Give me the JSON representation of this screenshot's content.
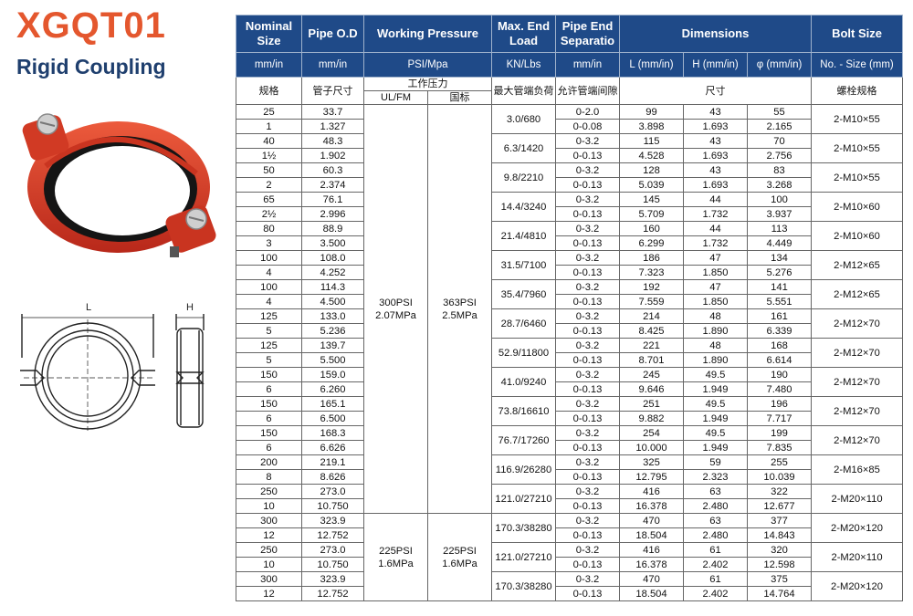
{
  "header": {
    "title": "XGQT01",
    "subtitle": "Rigid Coupling"
  },
  "colors": {
    "title": "#e4572e",
    "subtitle": "#1f3f6e",
    "table_header_bg": "#1f4a88",
    "coupling_red": "#d93a22"
  },
  "table": {
    "headers": {
      "nominal": "Nominal Size",
      "pipe_od": "Pipe O.D",
      "working_pressure": "Working Pressure",
      "max_end_load": "Max. End Load",
      "pipe_end_separation": "Pipe End Separatio",
      "dimensions": "Dimensions",
      "bolt_size": "Bolt Size"
    },
    "units": {
      "nominal": "mm/in",
      "pipe_od": "mm/in",
      "pressure": "PSI/Mpa",
      "end_load": "KN/Lbs",
      "separation": "mm/in",
      "L": "L (mm/in)",
      "H": "H (mm/in)",
      "phi": "φ (mm/in)",
      "bolt": "No. - Size (mm)"
    },
    "cn": {
      "nominal": "规格",
      "pipe_od": "管子尺寸",
      "pressure": "工作压力",
      "ulfm": "UL/FM",
      "gb": "国标",
      "end_load": "最大管端负荷",
      "separation": "允许管端间隙",
      "dimensions": "尺寸",
      "bolt": "螺栓规格"
    },
    "pressure_groups": [
      {
        "ul": "300PSI\n2.07MPa",
        "ul_psi": "300PSI",
        "ul_mpa": "2.07MPa",
        "gb_psi": "363PSI",
        "gb_mpa": "2.5MPa"
      },
      {
        "ul_psi": "225PSI",
        "ul_mpa": "1.6MPa",
        "gb_psi": "225PSI",
        "gb_mpa": "1.6MPa"
      }
    ],
    "rows": [
      {
        "nom_mm": "25",
        "nom_in": "1",
        "od_mm": "33.7",
        "od_in": "1.327",
        "load": "3.0/680",
        "sep_mm": "0-2.0",
        "sep_in": "0-0.08",
        "L_mm": "99",
        "L_in": "3.898",
        "H_mm": "43",
        "H_in": "1.693",
        "phi_mm": "55",
        "phi_in": "2.165",
        "bolt": "2-M10×55"
      },
      {
        "nom_mm": "40",
        "nom_in": "1½",
        "od_mm": "48.3",
        "od_in": "1.902",
        "load": "6.3/1420",
        "sep_mm": "0-3.2",
        "sep_in": "0-0.13",
        "L_mm": "115",
        "L_in": "4.528",
        "H_mm": "43",
        "H_in": "1.693",
        "phi_mm": "70",
        "phi_in": "2.756",
        "bolt": "2-M10×55"
      },
      {
        "nom_mm": "50",
        "nom_in": "2",
        "od_mm": "60.3",
        "od_in": "2.374",
        "load": "9.8/2210",
        "sep_mm": "0-3.2",
        "sep_in": "0-0.13",
        "L_mm": "128",
        "L_in": "5.039",
        "H_mm": "43",
        "H_in": "1.693",
        "phi_mm": "83",
        "phi_in": "3.268",
        "bolt": "2-M10×55"
      },
      {
        "nom_mm": "65",
        "nom_in": "2½",
        "od_mm": "76.1",
        "od_in": "2.996",
        "load": "14.4/3240",
        "sep_mm": "0-3.2",
        "sep_in": "0-0.13",
        "L_mm": "145",
        "L_in": "5.709",
        "H_mm": "44",
        "H_in": "1.732",
        "phi_mm": "100",
        "phi_in": "3.937",
        "bolt": "2-M10×60"
      },
      {
        "nom_mm": "80",
        "nom_in": "3",
        "od_mm": "88.9",
        "od_in": "3.500",
        "load": "21.4/4810",
        "sep_mm": "0-3.2",
        "sep_in": "0-0.13",
        "L_mm": "160",
        "L_in": "6.299",
        "H_mm": "44",
        "H_in": "1.732",
        "phi_mm": "113",
        "phi_in": "4.449",
        "bolt": "2-M10×60"
      },
      {
        "nom_mm": "100",
        "nom_in": "4",
        "od_mm": "108.0",
        "od_in": "4.252",
        "load": "31.5/7100",
        "sep_mm": "0-3.2",
        "sep_in": "0-0.13",
        "L_mm": "186",
        "L_in": "7.323",
        "H_mm": "47",
        "H_in": "1.850",
        "phi_mm": "134",
        "phi_in": "5.276",
        "bolt": "2-M12×65"
      },
      {
        "nom_mm": "100",
        "nom_in": "4",
        "od_mm": "114.3",
        "od_in": "4.500",
        "load": "35.4/7960",
        "sep_mm": "0-3.2",
        "sep_in": "0-0.13",
        "L_mm": "192",
        "L_in": "7.559",
        "H_mm": "47",
        "H_in": "1.850",
        "phi_mm": "141",
        "phi_in": "5.551",
        "bolt": "2-M12×65"
      },
      {
        "nom_mm": "125",
        "nom_in": "5",
        "od_mm": "133.0",
        "od_in": "5.236",
        "load": "28.7/6460",
        "sep_mm": "0-3.2",
        "sep_in": "0-0.13",
        "L_mm": "214",
        "L_in": "8.425",
        "H_mm": "48",
        "H_in": "1.890",
        "phi_mm": "161",
        "phi_in": "6.339",
        "bolt": "2-M12×70"
      },
      {
        "nom_mm": "125",
        "nom_in": "5",
        "od_mm": "139.7",
        "od_in": "5.500",
        "load": "52.9/11800",
        "sep_mm": "0-3.2",
        "sep_in": "0-0.13",
        "L_mm": "221",
        "L_in": "8.701",
        "H_mm": "48",
        "H_in": "1.890",
        "phi_mm": "168",
        "phi_in": "6.614",
        "bolt": "2-M12×70"
      },
      {
        "nom_mm": "150",
        "nom_in": "6",
        "od_mm": "159.0",
        "od_in": "6.260",
        "load": "41.0/9240",
        "sep_mm": "0-3.2",
        "sep_in": "0-0.13",
        "L_mm": "245",
        "L_in": "9.646",
        "H_mm": "49.5",
        "H_in": "1.949",
        "phi_mm": "190",
        "phi_in": "7.480",
        "bolt": "2-M12×70"
      },
      {
        "nom_mm": "150",
        "nom_in": "6",
        "od_mm": "165.1",
        "od_in": "6.500",
        "load": "73.8/16610",
        "sep_mm": "0-3.2",
        "sep_in": "0-0.13",
        "L_mm": "251",
        "L_in": "9.882",
        "H_mm": "49.5",
        "H_in": "1.949",
        "phi_mm": "196",
        "phi_in": "7.717",
        "bolt": "2-M12×70"
      },
      {
        "nom_mm": "150",
        "nom_in": "6",
        "od_mm": "168.3",
        "od_in": "6.626",
        "load": "76.7/17260",
        "sep_mm": "0-3.2",
        "sep_in": "0-0.13",
        "L_mm": "254",
        "L_in": "10.000",
        "H_mm": "49.5",
        "H_in": "1.949",
        "phi_mm": "199",
        "phi_in": "7.835",
        "bolt": "2-M12×70"
      },
      {
        "nom_mm": "200",
        "nom_in": "8",
        "od_mm": "219.1",
        "od_in": "8.626",
        "load": "116.9/26280",
        "sep_mm": "0-3.2",
        "sep_in": "0-0.13",
        "L_mm": "325",
        "L_in": "12.795",
        "H_mm": "59",
        "H_in": "2.323",
        "phi_mm": "255",
        "phi_in": "10.039",
        "bolt": "2-M16×85"
      },
      {
        "nom_mm": "250",
        "nom_in": "10",
        "od_mm": "273.0",
        "od_in": "10.750",
        "load": "121.0/27210",
        "sep_mm": "0-3.2",
        "sep_in": "0-0.13",
        "L_mm": "416",
        "L_in": "16.378",
        "H_mm": "63",
        "H_in": "2.480",
        "phi_mm": "322",
        "phi_in": "12.677",
        "bolt": "2-M20×110"
      },
      {
        "nom_mm": "300",
        "nom_in": "12",
        "od_mm": "323.9",
        "od_in": "12.752",
        "load": "170.3/38280",
        "sep_mm": "0-3.2",
        "sep_in": "0-0.13",
        "L_mm": "470",
        "L_in": "18.504",
        "H_mm": "63",
        "H_in": "2.480",
        "phi_mm": "377",
        "phi_in": "14.843",
        "bolt": "2-M20×120"
      },
      {
        "nom_mm": "250",
        "nom_in": "10",
        "od_mm": "273.0",
        "od_in": "10.750",
        "load": "121.0/27210",
        "sep_mm": "0-3.2",
        "sep_in": "0-0.13",
        "L_mm": "416",
        "L_in": "16.378",
        "H_mm": "61",
        "H_in": "2.402",
        "phi_mm": "320",
        "phi_in": "12.598",
        "bolt": "2-M20×110"
      },
      {
        "nom_mm": "300",
        "nom_in": "12",
        "od_mm": "323.9",
        "od_in": "12.752",
        "load": "170.3/38280",
        "sep_mm": "0-3.2",
        "sep_in": "0-0.13",
        "L_mm": "470",
        "L_in": "18.504",
        "H_mm": "61",
        "H_in": "2.402",
        "phi_mm": "375",
        "phi_in": "14.764",
        "bolt": "2-M20×120"
      }
    ]
  },
  "drawing": {
    "L": "L",
    "H": "H"
  }
}
